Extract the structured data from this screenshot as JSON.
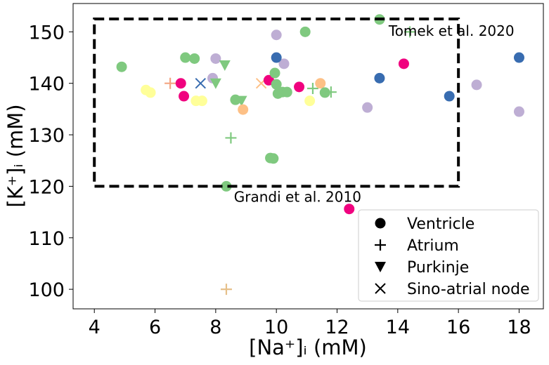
{
  "chart_data": {
    "type": "scatter",
    "xlabel": "[Na⁺]ᵢ (mM)",
    "ylabel": "[K⁺]ᵢ (mM)",
    "xlim": [
      3.3,
      18.8
    ],
    "ylim": [
      96.2,
      155.5
    ],
    "xticks": [
      4,
      6,
      8,
      10,
      12,
      14,
      16,
      18
    ],
    "yticks": [
      100,
      110,
      120,
      130,
      140,
      150
    ],
    "grid": false,
    "legend_position": "lower-right",
    "legend": [
      {
        "label": "Ventricle",
        "marker": "circle"
      },
      {
        "label": "Atrium",
        "marker": "plus"
      },
      {
        "label": "Purkinje",
        "marker": "triangle-down"
      },
      {
        "label": "Sino-atrial node",
        "marker": "x"
      }
    ],
    "annotations": [
      {
        "text": "Tomek et al. 2020",
        "x": 13.7,
        "y": 149.2
      },
      {
        "text": "Grandi et al. 2010",
        "x": 8.6,
        "y": 117.0
      }
    ],
    "reference_box": {
      "x": [
        4,
        16
      ],
      "y": [
        120,
        152.5
      ],
      "style": "dashed",
      "color": "#000000"
    },
    "colors": {
      "green": "#7fc97f",
      "lavender": "#beaed4",
      "peach": "#fdc086",
      "yellow": "#ffff99",
      "blue": "#386cb0",
      "magenta": "#f0027f",
      "salmon": "#f4a582",
      "tan": "#e6c08a"
    },
    "points": [
      {
        "x": 4.9,
        "y": 143.2,
        "marker": "circle",
        "color": "green"
      },
      {
        "x": 7.0,
        "y": 145.0,
        "marker": "circle",
        "color": "green"
      },
      {
        "x": 7.3,
        "y": 144.8,
        "marker": "circle",
        "color": "green"
      },
      {
        "x": 8.0,
        "y": 144.8,
        "marker": "circle",
        "color": "lavender"
      },
      {
        "x": 8.3,
        "y": 143.5,
        "marker": "triangle-down",
        "color": "green"
      },
      {
        "x": 7.9,
        "y": 141.0,
        "marker": "circle",
        "color": "lavender"
      },
      {
        "x": 8.0,
        "y": 140.0,
        "marker": "triangle-down",
        "color": "green"
      },
      {
        "x": 5.7,
        "y": 138.7,
        "marker": "circle",
        "color": "yellow"
      },
      {
        "x": 5.85,
        "y": 138.2,
        "marker": "circle",
        "color": "yellow"
      },
      {
        "x": 6.5,
        "y": 140.0,
        "marker": "plus",
        "color": "salmon"
      },
      {
        "x": 6.85,
        "y": 140.0,
        "marker": "circle",
        "color": "magenta"
      },
      {
        "x": 7.5,
        "y": 140.0,
        "marker": "x",
        "color": "blue"
      },
      {
        "x": 6.95,
        "y": 137.5,
        "marker": "circle",
        "color": "magenta"
      },
      {
        "x": 7.35,
        "y": 136.6,
        "marker": "circle",
        "color": "yellow"
      },
      {
        "x": 7.55,
        "y": 136.6,
        "marker": "circle",
        "color": "yellow"
      },
      {
        "x": 8.65,
        "y": 136.8,
        "marker": "circle",
        "color": "green"
      },
      {
        "x": 8.85,
        "y": 136.6,
        "marker": "triangle-down",
        "color": "green"
      },
      {
        "x": 8.9,
        "y": 134.9,
        "marker": "circle",
        "color": "peach"
      },
      {
        "x": 9.5,
        "y": 140.0,
        "marker": "x",
        "color": "peach"
      },
      {
        "x": 9.75,
        "y": 140.6,
        "marker": "circle",
        "color": "magenta"
      },
      {
        "x": 9.95,
        "y": 142.0,
        "marker": "circle",
        "color": "green"
      },
      {
        "x": 10.0,
        "y": 139.8,
        "marker": "circle",
        "color": "green"
      },
      {
        "x": 10.05,
        "y": 138.0,
        "marker": "circle",
        "color": "green"
      },
      {
        "x": 10.2,
        "y": 138.3,
        "marker": "circle",
        "color": "green"
      },
      {
        "x": 10.35,
        "y": 138.3,
        "marker": "circle",
        "color": "green"
      },
      {
        "x": 10.25,
        "y": 143.8,
        "marker": "circle",
        "color": "lavender"
      },
      {
        "x": 10.0,
        "y": 149.4,
        "marker": "circle",
        "color": "lavender"
      },
      {
        "x": 10.0,
        "y": 145.0,
        "marker": "circle",
        "color": "blue"
      },
      {
        "x": 10.75,
        "y": 139.3,
        "marker": "circle",
        "color": "magenta"
      },
      {
        "x": 10.95,
        "y": 150.0,
        "marker": "circle",
        "color": "green"
      },
      {
        "x": 11.1,
        "y": 136.6,
        "marker": "circle",
        "color": "yellow"
      },
      {
        "x": 11.2,
        "y": 139.0,
        "marker": "plus",
        "color": "green"
      },
      {
        "x": 11.45,
        "y": 140.0,
        "marker": "circle",
        "color": "peach"
      },
      {
        "x": 11.6,
        "y": 138.2,
        "marker": "circle",
        "color": "green"
      },
      {
        "x": 11.8,
        "y": 138.3,
        "marker": "plus",
        "color": "green"
      },
      {
        "x": 8.5,
        "y": 129.4,
        "marker": "plus",
        "color": "green"
      },
      {
        "x": 9.8,
        "y": 125.5,
        "marker": "circle",
        "color": "green"
      },
      {
        "x": 9.9,
        "y": 125.4,
        "marker": "circle",
        "color": "green"
      },
      {
        "x": 8.35,
        "y": 120.0,
        "marker": "circle",
        "color": "green"
      },
      {
        "x": 12.4,
        "y": 115.6,
        "marker": "circle",
        "color": "magenta"
      },
      {
        "x": 8.35,
        "y": 100.0,
        "marker": "plus",
        "color": "tan"
      },
      {
        "x": 13.0,
        "y": 135.3,
        "marker": "circle",
        "color": "lavender"
      },
      {
        "x": 13.4,
        "y": 141.0,
        "marker": "circle",
        "color": "blue"
      },
      {
        "x": 13.4,
        "y": 152.4,
        "marker": "circle",
        "color": "green"
      },
      {
        "x": 14.2,
        "y": 143.8,
        "marker": "circle",
        "color": "magenta"
      },
      {
        "x": 14.4,
        "y": 150.0,
        "marker": "plus",
        "color": "green"
      },
      {
        "x": 15.7,
        "y": 137.5,
        "marker": "circle",
        "color": "blue"
      },
      {
        "x": 16.6,
        "y": 139.7,
        "marker": "circle",
        "color": "lavender"
      },
      {
        "x": 18.0,
        "y": 145.0,
        "marker": "circle",
        "color": "blue"
      },
      {
        "x": 18.0,
        "y": 134.5,
        "marker": "circle",
        "color": "lavender"
      }
    ]
  }
}
